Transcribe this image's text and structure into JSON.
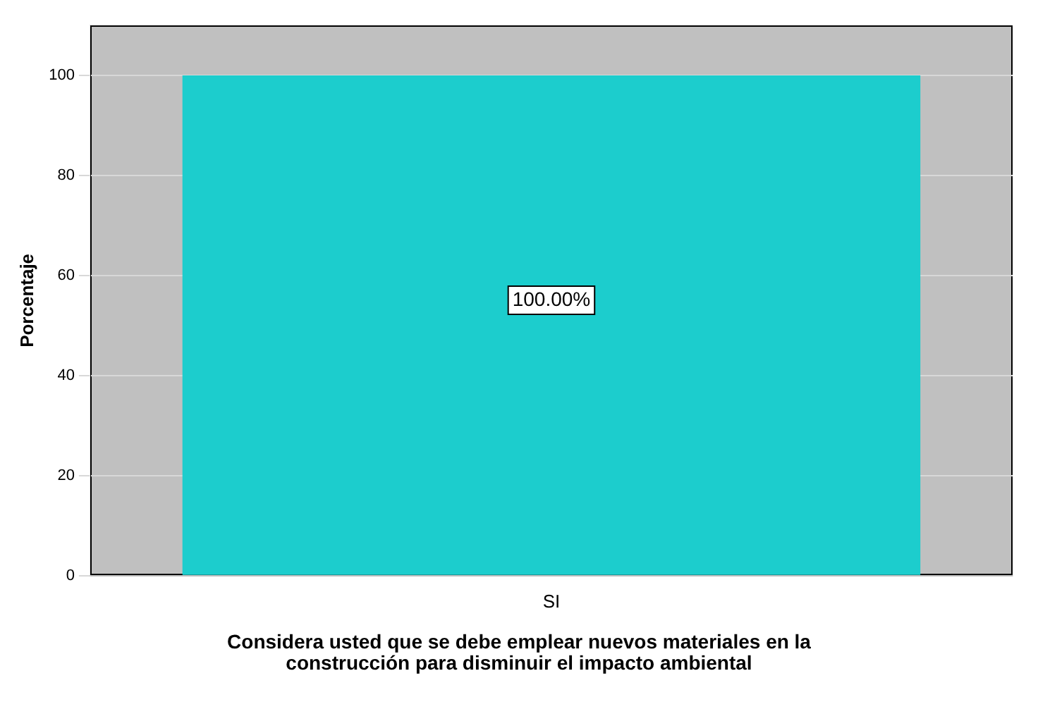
{
  "chart_data": {
    "type": "bar",
    "xlabel": "Considera usted que se debe emplear nuevos materiales en la construcción para disminuir el impacto ambiental",
    "ylabel": "Porcentaje",
    "categories": [
      "SI"
    ],
    "values": [
      100
    ],
    "color": "#1ccdcd",
    "value_labels": [
      "100.00%"
    ],
    "ylim": [
      0,
      110
    ],
    "yticks": [
      0,
      20,
      40,
      60,
      80,
      100
    ],
    "grid": "y",
    "legend": false
  }
}
